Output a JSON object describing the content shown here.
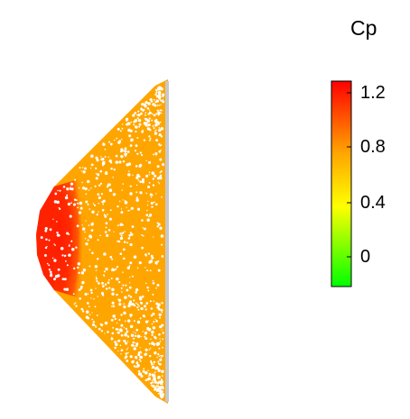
{
  "colorbar": {
    "title": "Cp",
    "ticks": [
      {
        "label": "1.2",
        "value": 1.2
      },
      {
        "label": "0.8",
        "value": 0.8
      },
      {
        "label": "0.4",
        "value": 0.4
      },
      {
        "label": "0",
        "value": 0
      }
    ],
    "range": [
      -0.2,
      1.34
    ],
    "gradient_stops": [
      {
        "value": -0.2,
        "color": "#00ff00"
      },
      {
        "value": 0.4,
        "color": "#ffff00"
      },
      {
        "value": 0.8,
        "color": "#ffa500"
      },
      {
        "value": 1.34,
        "color": "#ff0000"
      }
    ]
  },
  "colors": {
    "body_fill": "#ffa500",
    "stagnation_red": "#ff0000",
    "edge_gray": "#c8c8c8"
  }
}
